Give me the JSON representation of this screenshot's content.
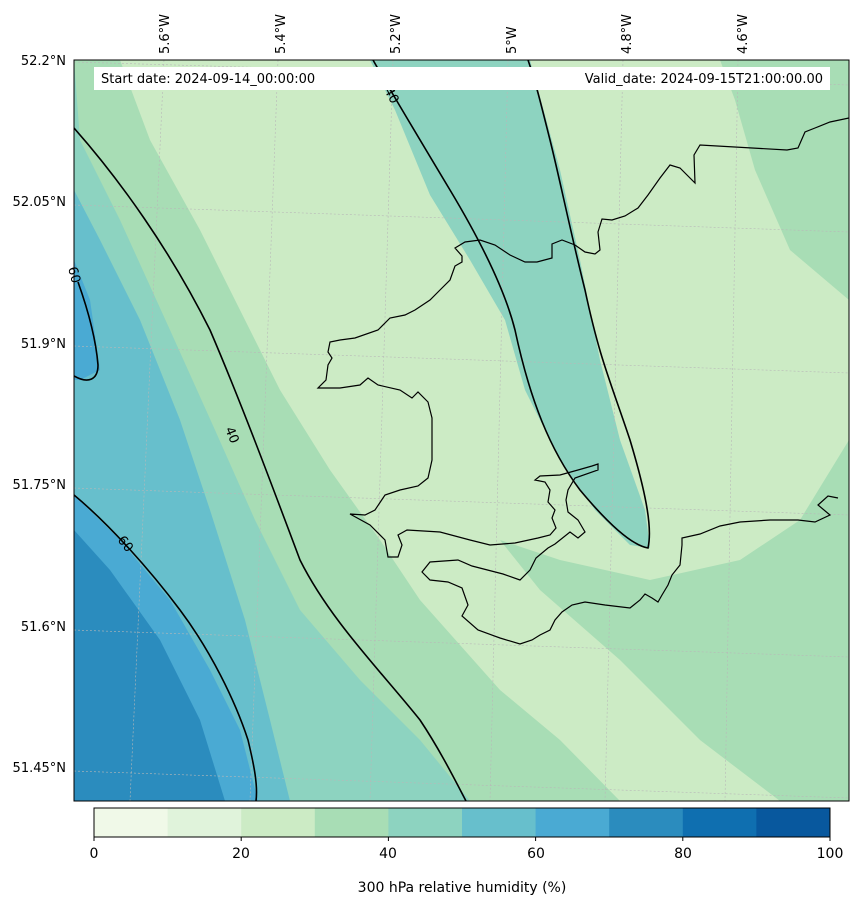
{
  "map": {
    "start_date_label": "Start date: 2024-09-14_00:00:00",
    "valid_date_label": "Valid_date: 2024-09-15T21:00:00.00",
    "lat_labels": [
      "52.2°N",
      "52.05°N",
      "51.9°N",
      "51.75°N",
      "51.6°N",
      "51.45°N"
    ],
    "lon_labels": [
      "5.6°W",
      "5.4°W",
      "5.2°W",
      "5°W",
      "4.8°W",
      "4.6°W"
    ],
    "contour_labels": [
      "40",
      "60",
      "40",
      "60"
    ],
    "colorbar": {
      "label": "300 hPa relative humidity (%)",
      "ticks": [
        "0",
        "20",
        "40",
        "60",
        "80",
        "100"
      ],
      "levels": [
        0,
        10,
        20,
        30,
        40,
        50,
        60,
        70,
        80,
        90,
        100
      ],
      "colors": [
        "#f0f9e8",
        "#e0f3db",
        "#ccebc5",
        "#a8ddb5",
        "#8dd3c0",
        "#67bfcc",
        "#4aaad3",
        "#2b8cbe",
        "#0f6fb0",
        "#08589e"
      ]
    }
  }
}
